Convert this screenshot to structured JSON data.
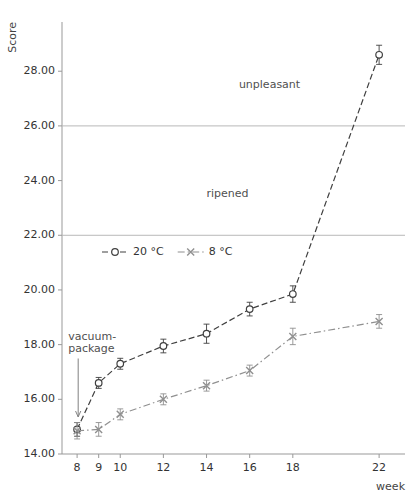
{
  "chart_data": {
    "type": "line",
    "x": [
      8,
      9,
      10,
      12,
      14,
      16,
      18,
      22
    ],
    "series": [
      {
        "name": "20 °C",
        "color": "#404040",
        "marker": "circle",
        "line_style": "dashed",
        "values": [
          14.9,
          16.6,
          17.3,
          17.95,
          18.4,
          19.3,
          19.85,
          28.6
        ],
        "errors": [
          0.25,
          0.2,
          0.2,
          0.25,
          0.35,
          0.25,
          0.3,
          0.35
        ]
      },
      {
        "name": "8 °C",
        "color": "#909090",
        "marker": "x",
        "line_style": "dashdot",
        "values": [
          14.85,
          14.9,
          15.45,
          16.0,
          16.5,
          17.05,
          18.3,
          18.85
        ],
        "errors": [
          0.3,
          0.25,
          0.2,
          0.2,
          0.2,
          0.2,
          0.3,
          0.25
        ]
      }
    ],
    "xlim": [
      7.3,
      23.2
    ],
    "ylim": [
      14.0,
      29.8
    ],
    "xticks": [
      8,
      9,
      10,
      12,
      14,
      16,
      18,
      22
    ],
    "yticks": [
      {
        "value": 14.0,
        "label": "14.00"
      },
      {
        "value": 16.0,
        "label": "16.00"
      },
      {
        "value": 18.0,
        "label": "18.00"
      },
      {
        "value": 20.0,
        "label": "20.00"
      },
      {
        "value": 22.0,
        "label": "22.00"
      },
      {
        "value": 24.0,
        "label": "24.00"
      },
      {
        "value": 26.0,
        "label": "26.00"
      },
      {
        "value": 28.0,
        "label": "28.00"
      }
    ],
    "xlabel": "week",
    "ylabel": "Score",
    "hlines": [
      22.0,
      26.0
    ],
    "annotations": [
      {
        "text": "unpleasant",
        "x": 15.5,
        "y": 27.5
      },
      {
        "text": "ripened",
        "x": 14.0,
        "y": 23.5
      },
      {
        "text": "vacuum-\npackage",
        "x": 8.05,
        "y": 14.88,
        "arrow": true
      }
    ],
    "grid": false,
    "legend": "center left"
  }
}
